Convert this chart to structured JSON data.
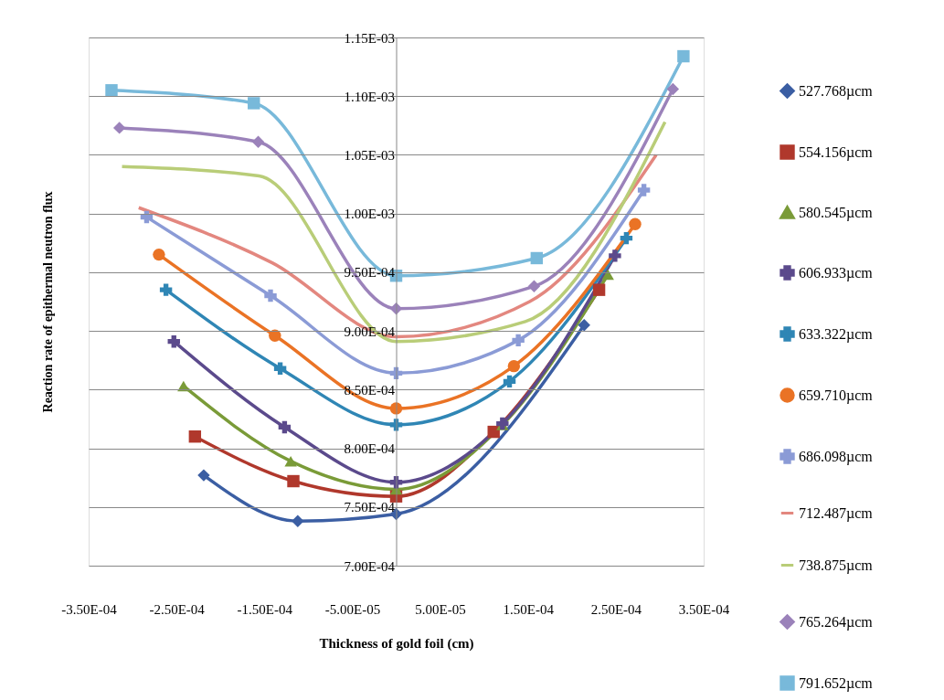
{
  "chart_data": {
    "type": "line",
    "xlabel": "Thickness of gold foil (cm)",
    "ylabel": "Reaction rate of epithermal neutron flux",
    "xlim": [
      -0.00035,
      0.00035
    ],
    "ylim": [
      0.0007,
      0.00115
    ],
    "xticks": [
      {
        "value": -0.00035,
        "label": "-3.50E-04"
      },
      {
        "value": -0.00025,
        "label": "-2.50E-04"
      },
      {
        "value": -0.00015,
        "label": "-1.50E-04"
      },
      {
        "value": -5e-05,
        "label": "-5.00E-05"
      },
      {
        "value": 5e-05,
        "label": "5.00E-05"
      },
      {
        "value": 0.00015,
        "label": "1.50E-04"
      },
      {
        "value": 0.00025,
        "label": "2.50E-04"
      },
      {
        "value": 0.00035,
        "label": "3.50E-04"
      }
    ],
    "yticks": [
      {
        "value": 0.0007,
        "label": "7.00E-04"
      },
      {
        "value": 0.00075,
        "label": "7.50E-04"
      },
      {
        "value": 0.0008,
        "label": "8.00E-04"
      },
      {
        "value": 0.00085,
        "label": "8.50E-04"
      },
      {
        "value": 0.0009,
        "label": "9.00E-04"
      },
      {
        "value": 0.00095,
        "label": "9.50E-04"
      },
      {
        "value": 0.001,
        "label": "1.00E-03"
      },
      {
        "value": 0.00105,
        "label": "1.05E-03"
      },
      {
        "value": 0.0011,
        "label": "1.10E-03"
      },
      {
        "value": 0.00115,
        "label": "1.15E-03"
      }
    ],
    "grid": "y",
    "legend": "right",
    "series": [
      {
        "name": "527.768µcm",
        "color": "#3b5ea3",
        "marker": "diamond",
        "x": [
          -0.000219,
          -0.000112,
          0,
          0.000214
        ],
        "values": [
          0.000777,
          0.000738,
          0.000744,
          0.000905
        ]
      },
      {
        "name": "554.156µcm",
        "color": "#b0382c",
        "marker": "square",
        "x": [
          -0.000229,
          -0.000117,
          0,
          0.000111,
          0.000231
        ],
        "values": [
          0.00081,
          0.000772,
          0.000759,
          0.000814,
          0.000935
        ]
      },
      {
        "name": "580.545µcm",
        "color": "#7a9b38",
        "marker": "triangle",
        "x": [
          -0.000242,
          -0.00012,
          0,
          0.000121,
          0.000241
        ],
        "values": [
          0.000853,
          0.000789,
          0.000765,
          0.00082,
          0.000948
        ]
      },
      {
        "name": "606.933µcm",
        "color": "#5b4a8c",
        "marker": "cross",
        "x": [
          -0.000253,
          -0.000127,
          0,
          0.000121,
          0.000249
        ],
        "values": [
          0.000891,
          0.000818,
          0.000771,
          0.000821,
          0.000964
        ]
      },
      {
        "name": "633.322µcm",
        "color": "#2f86b5",
        "marker": "cross",
        "x": [
          -0.000262,
          -0.000132,
          0,
          0.000129,
          0.000262
        ],
        "values": [
          0.000935,
          0.000868,
          0.00082,
          0.000857,
          0.000979
        ]
      },
      {
        "name": "659.710µcm",
        "color": "#ea7325",
        "marker": "circle",
        "x": [
          -0.00027,
          -0.000138,
          0,
          0.000134,
          0.000272
        ],
        "values": [
          0.000965,
          0.000896,
          0.000834,
          0.00087,
          0.000991
        ]
      },
      {
        "name": "686.098µcm",
        "color": "#8b9bd6",
        "marker": "cross",
        "x": [
          -0.000284,
          -0.000143,
          0,
          0.000139,
          0.000282
        ],
        "values": [
          0.000997,
          0.00093,
          0.000864,
          0.000892,
          0.00102
        ]
      },
      {
        "name": "712.487µcm",
        "color": "#e3877f",
        "marker": "none",
        "x": [
          -0.000293,
          -0.000141,
          0,
          0.000152,
          0.000296
        ],
        "values": [
          0.001005,
          0.000958,
          0.000895,
          0.000925,
          0.00105
        ]
      },
      {
        "name": "738.875µcm",
        "color": "#b9cd78",
        "marker": "none",
        "x": [
          -0.000312,
          -0.000156,
          0,
          0.000147,
          0.000306
        ],
        "values": [
          0.00104,
          0.001032,
          0.000891,
          0.000908,
          0.001078
        ]
      },
      {
        "name": "765.264µcm",
        "color": "#9b82ba",
        "marker": "diamond",
        "x": [
          -0.000315,
          -0.000157,
          0,
          0.000157,
          0.000315
        ],
        "values": [
          0.001073,
          0.001061,
          0.000919,
          0.000938,
          0.001106
        ]
      },
      {
        "name": "791.652µcm",
        "color": "#78b9da",
        "marker": "square",
        "x": [
          -0.000324,
          -0.000162,
          0,
          0.00016,
          0.000327
        ],
        "values": [
          0.001105,
          0.001094,
          0.000947,
          0.000962,
          0.001134
        ]
      }
    ]
  }
}
